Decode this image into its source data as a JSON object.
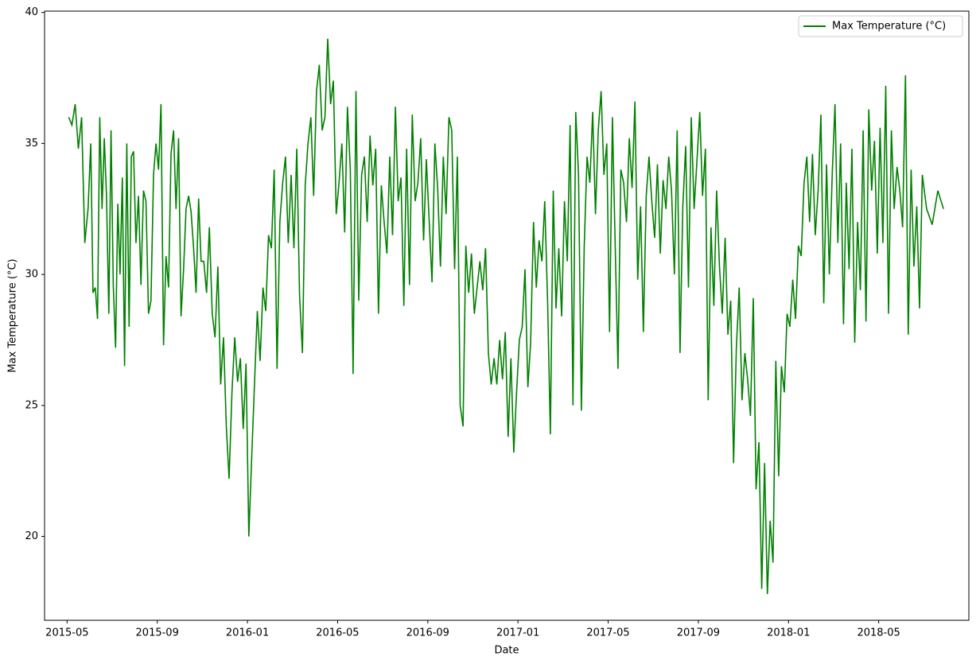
{
  "chart_data": {
    "type": "line",
    "xlabel": "Date",
    "ylabel": "Max Temperature (°C)",
    "legend": "upper right",
    "xlim": [
      "2015-04",
      "2018-09"
    ],
    "xticks": [
      "2015-05",
      "2015-09",
      "2016-01",
      "2016-05",
      "2016-09",
      "2017-01",
      "2017-05",
      "2017-09",
      "2018-01",
      "2018-05"
    ],
    "ylim": [
      16.8,
      40.05
    ],
    "yticks": [
      20,
      25,
      30,
      35,
      40
    ],
    "x": [
      "2015-05",
      "2015-06",
      "2015-07",
      "2015-08",
      "2015-09",
      "2015-10",
      "2015-11",
      "2015-12",
      "2016-01",
      "2016-02",
      "2016-03",
      "2016-04",
      "2016-05",
      "2016-06",
      "2016-07",
      "2016-08",
      "2016-09",
      "2016-10",
      "2016-11",
      "2016-12",
      "2017-01",
      "2017-02",
      "2017-03",
      "2017-04",
      "2017-05",
      "2017-06",
      "2017-07",
      "2017-08",
      "2017-09",
      "2017-10",
      "2017-11",
      "2017-12",
      "2018-01",
      "2018-02",
      "2018-03",
      "2018-04",
      "2018-05",
      "2018-06",
      "2018-07"
    ],
    "series": [
      {
        "name": "Max Temperature (°C)",
        "color": "#008000",
        "values": [
          [
            36.0,
            35.7,
            36.5,
            34.8,
            36.0,
            31.2,
            32.5
          ],
          [
            35.0,
            29.3,
            29.5,
            28.3,
            36.0,
            32.5,
            35.2,
            33.0,
            28.5,
            35.5
          ],
          [
            29.6,
            27.2,
            32.7,
            30.0,
            33.7,
            26.5,
            35.0,
            28.0,
            34.5,
            34.7
          ],
          [
            31.2,
            33.0,
            29.6,
            33.2,
            32.8,
            28.5,
            29.0,
            33.8,
            35.0
          ],
          [
            34.0,
            36.5,
            27.3,
            30.7,
            29.5,
            34.6,
            35.5,
            32.5,
            35.2
          ],
          [
            28.4,
            30.2,
            32.5,
            33.0,
            32.4,
            31.0,
            29.3,
            32.9,
            30.5
          ],
          [
            30.5,
            29.3,
            31.8,
            28.5,
            27.6,
            30.3,
            25.8,
            27.6
          ],
          [
            24.2,
            22.2,
            25.5,
            27.6,
            25.9,
            26.8,
            24.1,
            26.6
          ],
          [
            20.0,
            23.0,
            25.8,
            28.6,
            26.7,
            29.5,
            28.6,
            31.5
          ],
          [
            31.0,
            34.0,
            26.4,
            32.0,
            33.5,
            34.5,
            31.2,
            33.8
          ],
          [
            31.0,
            34.8,
            29.2,
            27.0,
            33.4,
            35.0,
            36.0,
            33.0
          ],
          [
            37.0,
            38.0,
            35.5,
            36.0,
            39.0,
            36.5,
            37.4,
            32.3
          ],
          [
            33.5,
            35.0,
            31.6,
            36.4,
            34.0,
            26.2,
            37.0,
            29.0
          ],
          [
            33.8,
            34.5,
            32.0,
            35.3,
            33.4,
            34.8,
            28.5,
            33.4
          ],
          [
            32.0,
            30.8,
            34.5,
            31.5,
            36.4,
            32.8,
            33.7,
            28.8
          ],
          [
            34.8,
            29.6,
            36.1,
            32.8,
            33.5,
            35.2,
            31.3,
            34.4
          ],
          [
            32.0,
            29.7,
            35.0,
            33.3,
            30.3,
            34.5,
            32.3,
            36.0
          ],
          [
            35.5,
            30.2,
            34.5,
            25.0,
            24.2,
            31.1,
            29.3,
            30.8
          ],
          [
            28.5,
            29.5,
            30.5,
            29.4,
            31.0,
            27.0,
            25.8,
            26.8
          ],
          [
            25.8,
            27.5,
            26.0,
            27.8,
            23.8,
            26.8,
            23.2,
            25.5
          ],
          [
            27.5,
            28.0,
            30.2,
            25.7,
            27.4,
            32.0,
            29.5,
            31.3
          ],
          [
            30.5,
            32.8,
            29.0,
            23.9,
            33.2,
            28.7,
            31.0,
            28.4
          ],
          [
            32.8,
            30.5,
            35.7,
            25.0,
            36.2,
            33.8,
            24.8,
            31.0
          ],
          [
            34.5,
            33.5,
            36.2,
            32.3,
            35.5,
            37.0,
            33.8,
            35.0
          ],
          [
            27.8,
            36.0,
            31.1,
            26.4,
            34.0,
            33.5,
            32.0,
            35.2
          ],
          [
            33.3,
            36.6,
            29.8,
            32.6,
            27.8,
            33.0,
            34.5,
            32.8
          ],
          [
            31.4,
            34.2,
            30.8,
            33.6,
            32.5,
            34.5,
            33.2,
            30.0
          ],
          [
            35.5,
            27.0,
            32.6,
            34.9,
            29.5,
            36.0,
            32.5,
            34.3
          ],
          [
            36.2,
            33.0,
            34.8,
            25.2,
            31.8,
            28.8,
            33.2,
            30.3
          ],
          [
            28.5,
            31.4,
            27.7,
            29.0,
            22.8,
            27.2,
            29.5,
            25.2
          ],
          [
            27.0,
            26.0,
            24.6,
            29.1,
            21.8,
            23.6,
            18.0,
            22.8
          ],
          [
            17.8,
            20.6,
            19.0,
            26.7,
            22.3,
            26.5,
            25.5,
            28.5
          ],
          [
            28.0,
            29.8,
            28.3,
            31.1,
            30.7,
            33.5,
            34.5,
            32.0
          ],
          [
            34.6,
            31.5,
            33.2,
            36.1,
            28.9,
            34.2,
            30.0,
            33.8
          ],
          [
            36.5,
            31.2,
            35.0,
            28.1,
            33.5,
            30.2,
            34.8,
            27.4
          ],
          [
            32.0,
            29.4,
            35.5,
            28.2,
            36.3,
            33.2,
            35.1,
            30.8
          ],
          [
            35.6,
            31.2,
            37.2,
            28.5,
            35.5,
            32.5,
            34.1,
            33.2
          ],
          [
            31.8,
            37.6,
            27.7,
            34.0,
            30.3,
            32.6,
            28.7,
            33.8
          ],
          [
            32.5,
            31.9,
            33.2,
            32.5
          ]
        ]
      }
    ]
  }
}
